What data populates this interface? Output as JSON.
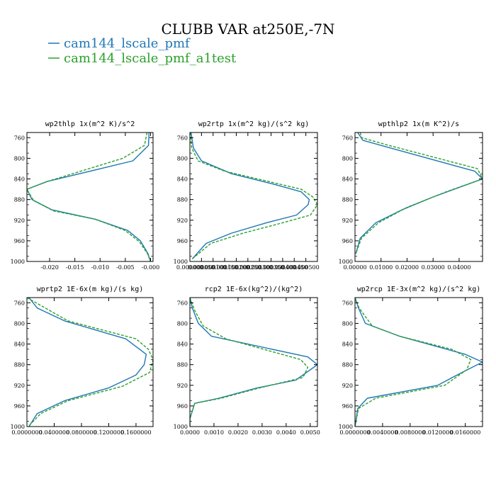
{
  "figure": {
    "title": "CLUBB VAR at250E,-7N"
  },
  "legend": [
    {
      "name": "cam144_lscale_pmf",
      "color": "#1f77b4",
      "dash": "solid"
    },
    {
      "name": "cam144_lscale_pmf_a1test",
      "color": "#2ca02c",
      "dash": "dashed"
    }
  ],
  "chart_data": [
    {
      "type": "line",
      "title": "wp2thlp   1x(m^2 K)/s^2",
      "y_inverted": true,
      "ylim": [
        1000,
        750
      ],
      "xlim": [
        -0.0245,
        0.0005
      ],
      "yticks": [
        760,
        800,
        840,
        880,
        920,
        960,
        1000
      ],
      "xticks": [
        -0.02,
        -0.015,
        -0.01,
        -0.005,
        0.0
      ],
      "xtick_labels": [
        "-0.020",
        "-0.015",
        "-0.010",
        "-0.005",
        "-0.000"
      ],
      "grid": false,
      "series": [
        {
          "name": "cam144_lscale_pmf",
          "x": [
            -0.0003,
            -0.0004,
            -0.0035,
            -0.0205,
            -0.0245,
            -0.0235,
            -0.0195,
            -0.011,
            -0.0045,
            -0.002,
            -0.0005,
            0.0
          ],
          "y": [
            750,
            775,
            805,
            845,
            860,
            880,
            900,
            918,
            940,
            960,
            985,
            1000
          ]
        },
        {
          "name": "cam144_lscale_pmf_a1test",
          "x": [
            -0.0007,
            -0.0012,
            -0.0055,
            -0.0205,
            -0.0245,
            -0.0232,
            -0.0192,
            -0.011,
            -0.005,
            -0.0022,
            -0.0006,
            0.0
          ],
          "y": [
            750,
            775,
            800,
            845,
            860,
            882,
            902,
            918,
            940,
            962,
            985,
            1000
          ]
        }
      ]
    },
    {
      "type": "line",
      "title": "wp2rtp   1x(m^2 kg)/(s^2 kg)",
      "y_inverted": true,
      "ylim": [
        1000,
        750
      ],
      "xlim": [
        0.0,
        0.00055
      ],
      "yticks": [
        760,
        800,
        840,
        880,
        920,
        960,
        1000
      ],
      "xticks": [
        0.0,
        5e-05,
        0.0001,
        0.00015,
        0.0002,
        0.00025,
        0.0003,
        0.00035,
        0.0004,
        0.00045,
        0.0005
      ],
      "xtick_labels": [
        "0.000000",
        "0.000050",
        "0.000100",
        "0.000150",
        "0.000200",
        "0.000250",
        "0.000300",
        "0.000350",
        "0.000400",
        "0.000450",
        "0.000500"
      ],
      "grid": false,
      "series": [
        {
          "name": "cam144_lscale_pmf",
          "x": [
            5e-06,
            1.5e-05,
            5e-05,
            0.00018,
            0.00036,
            0.00048,
            0.000515,
            0.00051,
            0.00046,
            0.00033,
            0.00018,
            7e-05,
            1e-05
          ],
          "y": [
            750,
            780,
            805,
            830,
            850,
            865,
            880,
            890,
            910,
            925,
            945,
            965,
            995
          ]
        },
        {
          "name": "cam144_lscale_pmf_a1test",
          "x": [
            2e-06,
            8e-06,
            3.5e-05,
            0.00015,
            0.00034,
            0.00048,
            0.00053,
            0.00055,
            0.00052,
            0.0004,
            0.00023,
            9e-05,
            1e-05
          ],
          "y": [
            750,
            780,
            805,
            825,
            845,
            860,
            875,
            890,
            910,
            925,
            945,
            965,
            995
          ]
        }
      ]
    },
    {
      "type": "line",
      "title": "wpthlp2   1x(m K^2)/s",
      "y_inverted": true,
      "ylim": [
        1000,
        750
      ],
      "xlim": [
        0.0,
        0.049
      ],
      "yticks": [
        760,
        800,
        840,
        880,
        920,
        960,
        1000
      ],
      "xticks": [
        0.0,
        0.01,
        0.02,
        0.03,
        0.04
      ],
      "xtick_labels": [
        "0.00000",
        "0.01000",
        "0.02000",
        "0.03000",
        "0.04000"
      ],
      "grid": false,
      "series": [
        {
          "name": "cam144_lscale_pmf",
          "x": [
            0.001,
            0.003,
            0.01,
            0.046,
            0.049,
            0.03,
            0.018,
            0.008,
            0.002,
            0.0003
          ],
          "y": [
            750,
            765,
            775,
            825,
            840,
            875,
            900,
            925,
            955,
            985
          ]
        },
        {
          "name": "cam144_lscale_pmf_a1test",
          "x": [
            0.002,
            0.0025,
            0.013,
            0.047,
            0.049,
            0.035,
            0.02,
            0.009,
            0.0025,
            0.0003
          ],
          "y": [
            750,
            760,
            775,
            820,
            840,
            865,
            895,
            925,
            955,
            985
          ]
        }
      ]
    },
    {
      "type": "line",
      "title": "wprtp2   1E-6x(m kg)/(s kg)",
      "y_inverted": true,
      "ylim": [
        1000,
        750
      ],
      "xlim": [
        0.0,
        0.185
      ],
      "yticks": [
        760,
        800,
        840,
        880,
        920,
        960,
        1000
      ],
      "xticks": [
        0.0,
        0.04,
        0.08,
        0.12,
        0.16
      ],
      "xtick_labels": [
        "0.0000000",
        "0.0400000",
        "0.0800000",
        "0.1200000",
        "0.1600000"
      ],
      "grid": false,
      "series": [
        {
          "name": "cam144_lscale_pmf",
          "x": [
            0.003,
            0.015,
            0.055,
            0.145,
            0.175,
            0.172,
            0.16,
            0.12,
            0.055,
            0.015,
            0.003
          ],
          "y": [
            750,
            770,
            795,
            830,
            860,
            880,
            900,
            925,
            950,
            975,
            1000
          ]
        },
        {
          "name": "cam144_lscale_pmf_a1test",
          "x": [
            0.0,
            0.02,
            0.06,
            0.16,
            0.178,
            0.185,
            0.18,
            0.14,
            0.06,
            0.02,
            0.002
          ],
          "y": [
            750,
            765,
            795,
            830,
            850,
            870,
            895,
            922,
            950,
            975,
            1000
          ]
        }
      ]
    },
    {
      "type": "line",
      "title": "rcp2   1E-6x(kg^2)/(kg^2)",
      "y_inverted": true,
      "ylim": [
        1000,
        750
      ],
      "xlim": [
        0.0,
        0.0053
      ],
      "yticks": [
        760,
        800,
        840,
        880,
        920,
        960,
        1000
      ],
      "xticks": [
        0.0,
        0.001,
        0.002,
        0.003,
        0.004,
        0.005
      ],
      "xtick_labels": [
        "0.0000",
        "0.0010",
        "0.0020",
        "0.0030",
        "0.0040",
        "0.0050"
      ],
      "grid": false,
      "series": [
        {
          "name": "cam144_lscale_pmf",
          "x": [
            0.0,
            0.0001,
            0.00035,
            0.0009,
            0.0049,
            0.0053,
            0.0044,
            0.0028,
            0.0012,
            0.0002,
            0.0,
            0.0
          ],
          "y": [
            750,
            770,
            800,
            825,
            865,
            880,
            910,
            925,
            945,
            955,
            985,
            1000
          ]
        },
        {
          "name": "cam144_lscale_pmf_a1test",
          "x": [
            0.0,
            0.0002,
            0.00055,
            0.0015,
            0.0046,
            0.0049,
            0.0047,
            0.0029,
            0.0013,
            0.0002,
            0.0,
            0.0
          ],
          "y": [
            750,
            775,
            805,
            830,
            870,
            885,
            905,
            925,
            945,
            955,
            985,
            1000
          ]
        }
      ]
    },
    {
      "type": "line",
      "title": "wp2rcp   1E-3x(m^2 kg)/(s^2 kg)",
      "y_inverted": true,
      "ylim": [
        1000,
        750
      ],
      "xlim": [
        0.0,
        0.0185
      ],
      "yticks": [
        760,
        800,
        840,
        880,
        920,
        960,
        1000
      ],
      "xticks": [
        0.0,
        0.004,
        0.008,
        0.012,
        0.016
      ],
      "xtick_labels": [
        "0.0000000",
        "0.0040000",
        "0.0080000",
        "0.0120000",
        "0.0160000"
      ],
      "grid": false,
      "series": [
        {
          "name": "cam144_lscale_pmf",
          "x": [
            0.0,
            0.0005,
            0.0015,
            0.0065,
            0.016,
            0.0185,
            0.0148,
            0.012,
            0.0018,
            0.0004,
            0.0
          ],
          "y": [
            750,
            770,
            800,
            825,
            860,
            875,
            900,
            920,
            945,
            965,
            1000
          ]
        },
        {
          "name": "cam144_lscale_pmf_a1test",
          "x": [
            0.0,
            0.0006,
            0.0025,
            0.0065,
            0.014,
            0.0168,
            0.0162,
            0.013,
            0.003,
            0.0005,
            0.0
          ],
          "y": [
            750,
            770,
            805,
            825,
            850,
            870,
            890,
            920,
            945,
            965,
            1000
          ]
        }
      ]
    }
  ]
}
